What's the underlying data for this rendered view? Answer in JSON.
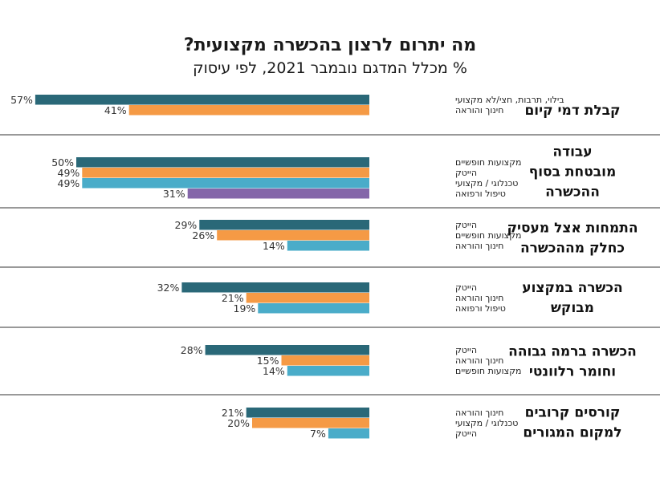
{
  "chart_data": {
    "type": "bar",
    "title": "מה יתרום לרצון בהכשרה מקצועית?",
    "subtitle": "% מכלל המדגם נובמבר 2021, לפי עיסוק",
    "xlim": [
      0,
      100
    ],
    "value_suffix": "%",
    "groups": [
      {
        "label": [
          "קבלת דמי קיום"
        ],
        "bars": [
          {
            "category": "בילוי, תרבות, חצי/לא מקצועי",
            "value": 57,
            "color": "#2a6878"
          },
          {
            "category": "חינוך והוראה",
            "value": 41,
            "color": "#f59a45"
          }
        ]
      },
      {
        "label": [
          "עבודה",
          "מובטחת בסוף",
          "ההכשרה"
        ],
        "bars": [
          {
            "category": "מקצועות חופשיים",
            "value": 50,
            "color": "#2a6878"
          },
          {
            "category": "הייטק",
            "value": 49,
            "color": "#f59a45"
          },
          {
            "category": "טכנלוגי / מקצועי",
            "value": 49,
            "color": "#4aacc9"
          },
          {
            "category": "טיפול ורפואה",
            "value": 31,
            "color": "#8466a9"
          }
        ]
      },
      {
        "label": [
          "התמחות אצל מעסיק",
          "כחלק מההכשרה"
        ],
        "bars": [
          {
            "category": "הייטק",
            "value": 29,
            "color": "#2a6878"
          },
          {
            "category": "מקצועות חופשיים",
            "value": 26,
            "color": "#f59a45"
          },
          {
            "category": "חינוך והוראה",
            "value": 14,
            "color": "#4aacc9"
          }
        ]
      },
      {
        "label": [
          "הכשרה במקצוע",
          "מבוקש"
        ],
        "bars": [
          {
            "category": "הייטק",
            "value": 32,
            "color": "#2a6878"
          },
          {
            "category": "חינוך והוראה",
            "value": 21,
            "color": "#f59a45"
          },
          {
            "category": "טיפול ורפואה",
            "value": 19,
            "color": "#4aacc9"
          }
        ]
      },
      {
        "label": [
          "הכשרה ברמה גבוהה",
          "וחומר רלוונטי"
        ],
        "bars": [
          {
            "category": "הייטק",
            "value": 28,
            "color": "#2a6878"
          },
          {
            "category": "חינוך והוראה",
            "value": 15,
            "color": "#f59a45"
          },
          {
            "category": "מקצועות חופשיים",
            "value": 14,
            "color": "#4aacc9"
          }
        ]
      },
      {
        "label": [
          "קורסים קרובים",
          "למקום המגורים"
        ],
        "bars": [
          {
            "category": "חינוך והוראה",
            "value": 21,
            "color": "#2a6878"
          },
          {
            "category": "טכנלוגי / מקצועי",
            "value": 20,
            "color": "#f59a45"
          },
          {
            "category": "הייטק",
            "value": 7,
            "color": "#4aacc9"
          }
        ]
      }
    ]
  }
}
